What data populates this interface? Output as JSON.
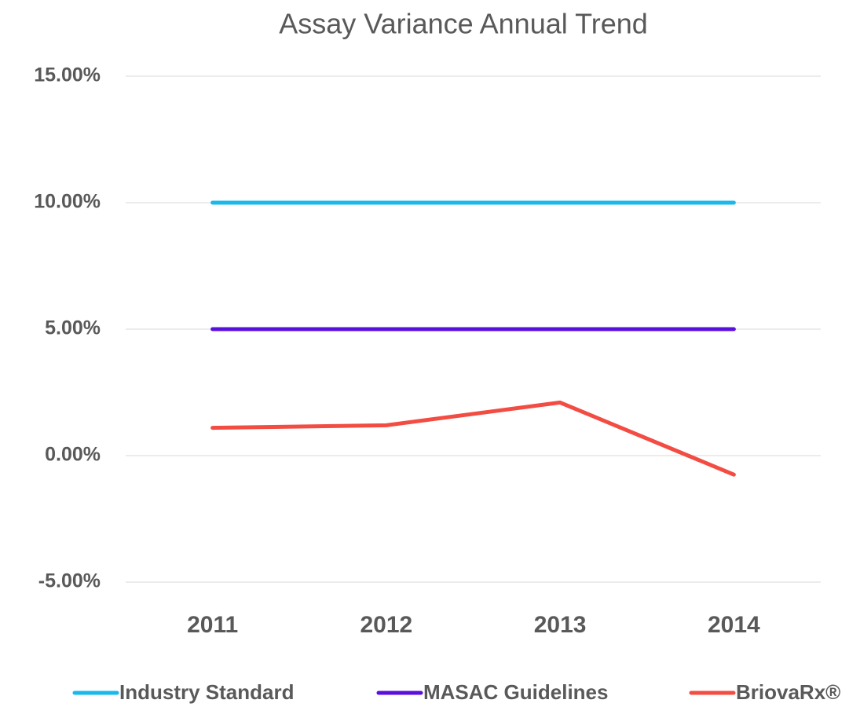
{
  "chart_data": {
    "type": "line",
    "title": "Assay Variance Annual Trend",
    "categories": [
      "2011",
      "2012",
      "2013",
      "2014"
    ],
    "series": [
      {
        "name": "Industry Standard",
        "color": "#19b9ea",
        "values": [
          10,
          10,
          10,
          10
        ]
      },
      {
        "name": "MASAC Guidelines",
        "color": "#5a10dc",
        "values": [
          5,
          5,
          5,
          5
        ]
      },
      {
        "name": "BriovaRx®",
        "color": "#f24c43",
        "values": [
          1.1,
          1.2,
          2.1,
          -0.75
        ]
      }
    ],
    "ylim": [
      -5,
      15
    ],
    "yticks": [
      {
        "value": -5,
        "label": "-5.00%"
      },
      {
        "value": 0,
        "label": "0.00%"
      },
      {
        "value": 5,
        "label": "5.00%"
      },
      {
        "value": 10,
        "label": "10.00%"
      },
      {
        "value": 15,
        "label": "15.00%"
      }
    ],
    "grid": true,
    "legend": "bottom"
  }
}
